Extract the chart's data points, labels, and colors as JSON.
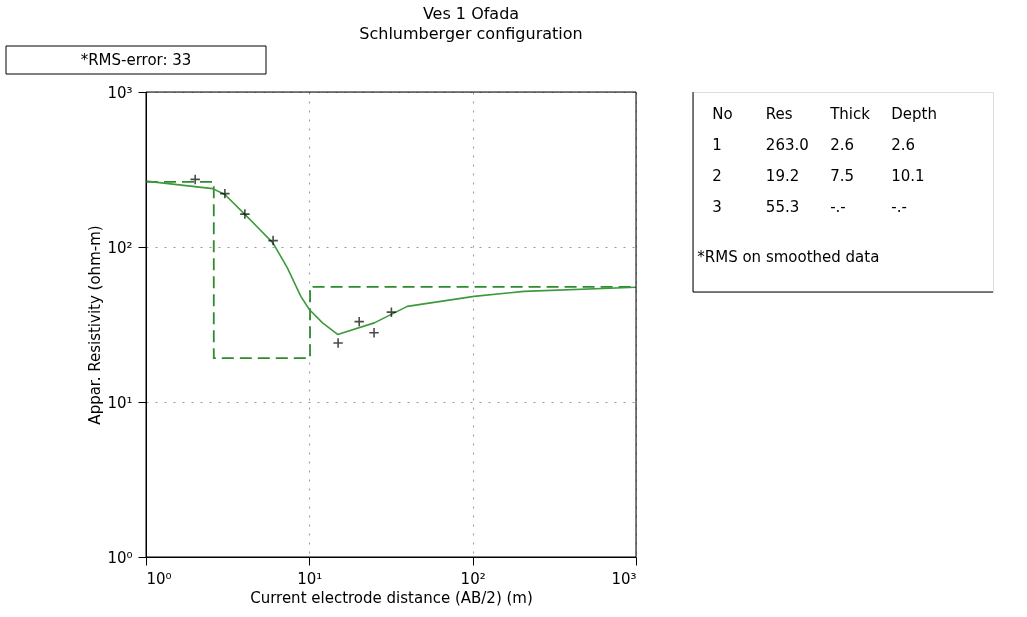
{
  "chart_data": [
    {
      "type": "line",
      "title": "Ves 1 Ofada",
      "subtitle": "Schlumberger configuration",
      "xlabel": "Current electrode distance (AB/2) (m)",
      "ylabel": "Appar. Resistivity (ohm-m)",
      "log": "xy",
      "grid": true,
      "xlim": [
        1,
        1000
      ],
      "ylim": [
        1,
        1000
      ],
      "xticks": [
        {
          "value": 1,
          "label": "10⁰"
        },
        {
          "value": 10,
          "label": "10¹"
        },
        {
          "value": 100,
          "label": "10²"
        },
        {
          "value": 1000,
          "label": "10³"
        }
      ],
      "yticks": [
        {
          "value": 1,
          "label": "10⁰"
        },
        {
          "value": 10,
          "label": "10¹"
        },
        {
          "value": 100,
          "label": "10²"
        },
        {
          "value": 1000,
          "label": "10³"
        }
      ],
      "annotations": [
        "*RMS-error: 33"
      ],
      "series": [
        {
          "type": "step",
          "color": "#2e8b2e",
          "line_style": "dashed",
          "x": [
            1,
            2.6,
            10.1,
            1000
          ],
          "values": [
            263,
            19.2,
            55.3,
            55.3
          ]
        },
        {
          "type": "line",
          "color": "#3c9a3c",
          "line_style": "solid",
          "x": [
            1,
            2.56,
            3.04,
            4.19,
            6.0,
            7.35,
            8.87,
            10,
            12.05,
            14.9,
            25,
            39.8,
            102,
            206,
            1000
          ],
          "values": [
            266,
            238,
            218,
            156,
            106,
            73,
            48,
            39.5,
            32.4,
            27.3,
            32.4,
            41.4,
            48,
            51.7,
            55
          ]
        },
        {
          "type": "scatter",
          "color": "#000000",
          "marker": "cross",
          "x": [
            2.0,
            3.04,
            4.03,
            6.0,
            15.0,
            20.2,
            24.9,
            31.8
          ],
          "values": [
            273,
            221,
            163,
            110,
            24,
            33,
            28,
            38
          ]
        }
      ]
    },
    {
      "type": "other",
      "annotations": [
        "No",
        "Res",
        "Thick",
        "Depth",
        "1",
        "263.0",
        "2.6",
        "2.6",
        "2",
        "19.2",
        "7.5",
        "10.1",
        "3",
        "55.3",
        "-.-",
        "-.-",
        "*RMS on smoothed data"
      ]
    }
  ]
}
